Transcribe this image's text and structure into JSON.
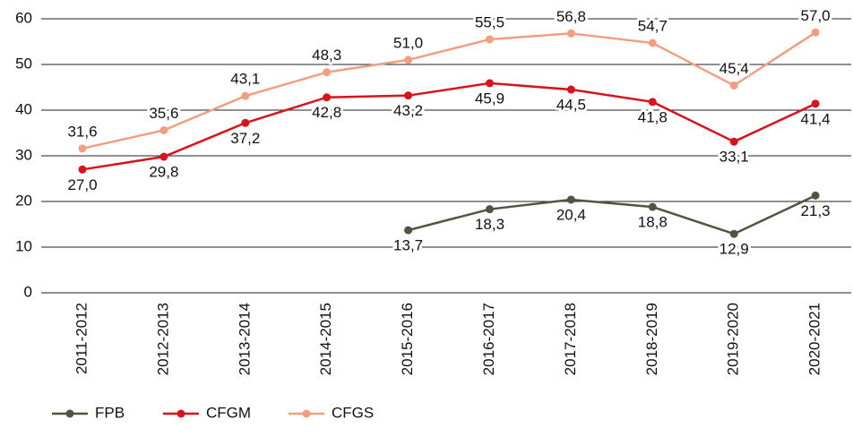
{
  "chart_data": {
    "type": "line",
    "categories": [
      "2011-2012",
      "2012-2013",
      "2013-2014",
      "2014-2015",
      "2015-2016",
      "2016-2017",
      "2017-2018",
      "2018-2019",
      "2019-2020",
      "2020-2021"
    ],
    "series": [
      {
        "name": "FPB",
        "color": "#50553f",
        "values": [
          null,
          null,
          null,
          null,
          13.7,
          18.3,
          20.4,
          18.8,
          12.9,
          21.3
        ],
        "value_labels": [
          null,
          null,
          null,
          null,
          "13,7",
          "18,3",
          "20,4",
          "18,8",
          "12,9",
          "21,3"
        ]
      },
      {
        "name": "CFGM",
        "color": "#d7141c",
        "values": [
          27.0,
          29.8,
          37.2,
          42.8,
          43.2,
          45.9,
          44.5,
          41.8,
          33.1,
          41.4
        ],
        "value_labels": [
          "27,0",
          "29,8",
          "37,2",
          "42,8",
          "43,2",
          "45,9",
          "44,5",
          "41,8",
          "33,1",
          "41,4"
        ]
      },
      {
        "name": "CFGS",
        "color": "#f19f80",
        "values": [
          31.6,
          35.6,
          43.1,
          48.3,
          51.0,
          55.5,
          56.8,
          54.7,
          45.4,
          57.0
        ],
        "value_labels": [
          "31,6",
          "35,6",
          "43,1",
          "48,3",
          "51,0",
          "55,5",
          "56,8",
          "54,7",
          "45,4",
          "57,0"
        ]
      }
    ],
    "ylim": [
      0,
      60
    ],
    "yticks": [
      0,
      10,
      20,
      30,
      40,
      50,
      60
    ],
    "grid": true,
    "legend": "bottom-left"
  }
}
